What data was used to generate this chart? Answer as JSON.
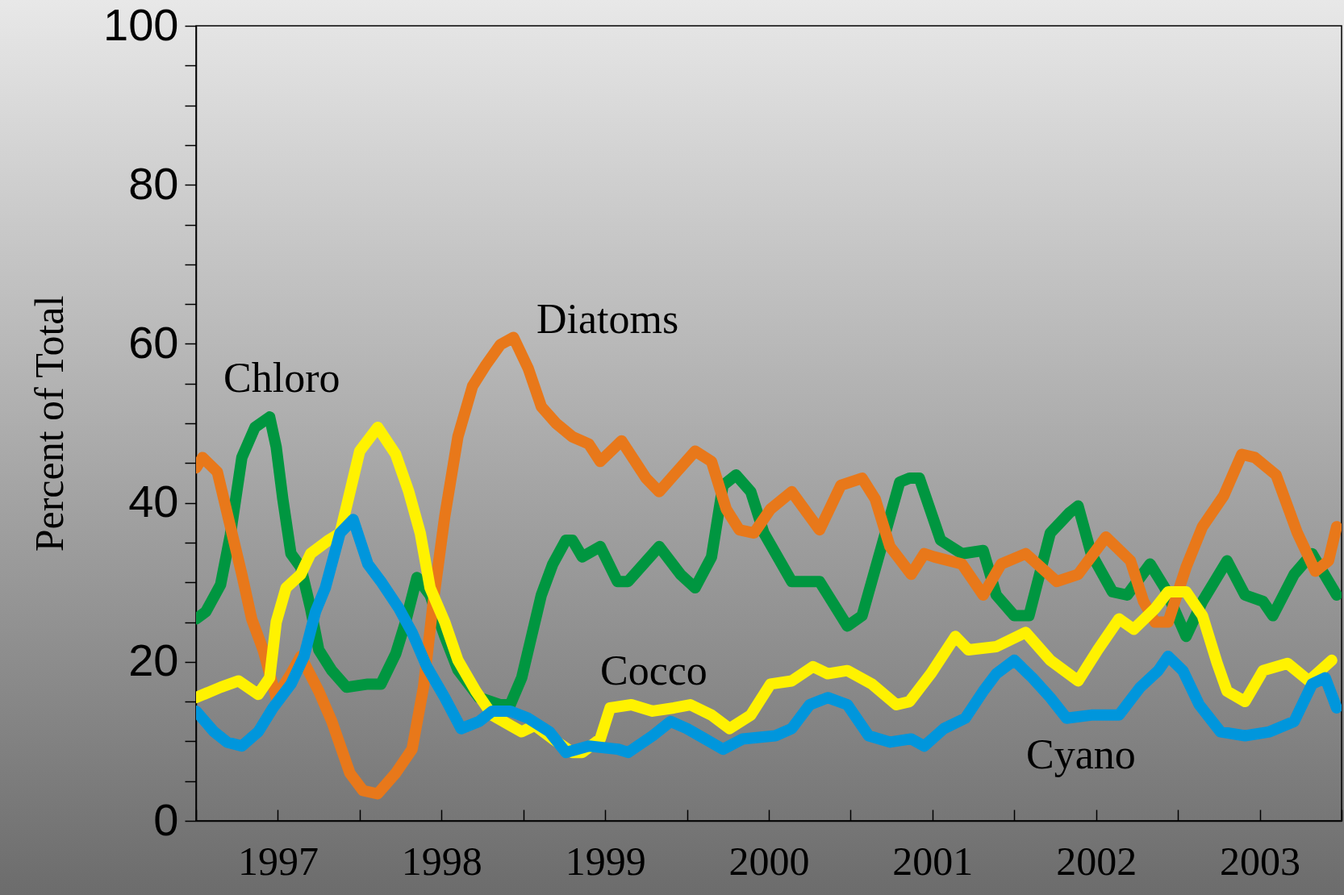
{
  "chart_data": {
    "type": "line",
    "ylabel": "Percent of Total",
    "xlim": [
      1997,
      2004
    ],
    "ylim": [
      0,
      100
    ],
    "xticks": [
      {
        "value": 1997,
        "label": null
      },
      {
        "value": 1997.5,
        "label": "1997"
      },
      {
        "value": 1998,
        "label": null
      },
      {
        "value": 1998.5,
        "label": "1998"
      },
      {
        "value": 1999,
        "label": null
      },
      {
        "value": 1999.5,
        "label": "1999"
      },
      {
        "value": 2000,
        "label": null
      },
      {
        "value": 2000.5,
        "label": "2000"
      },
      {
        "value": 2001,
        "label": null
      },
      {
        "value": 2001.5,
        "label": "2001"
      },
      {
        "value": 2002,
        "label": null
      },
      {
        "value": 2002.5,
        "label": "2002"
      },
      {
        "value": 2003,
        "label": null
      },
      {
        "value": 2003.5,
        "label": "2003"
      },
      {
        "value": 2004,
        "label": null
      }
    ],
    "yticks": [
      0,
      {
        "value": 5,
        "label": null
      },
      {
        "value": 10,
        "label": null
      },
      {
        "value": 15,
        "label": null
      },
      20,
      {
        "value": 25,
        "label": null
      },
      {
        "value": 30,
        "label": null
      },
      {
        "value": 35,
        "label": null
      },
      40,
      {
        "value": 45,
        "label": null
      },
      {
        "value": 50,
        "label": null
      },
      {
        "value": 55,
        "label": null
      },
      60,
      {
        "value": 65,
        "label": null
      },
      {
        "value": 70,
        "label": null
      },
      {
        "value": 75,
        "label": null
      },
      80,
      {
        "value": 85,
        "label": null
      },
      {
        "value": 90,
        "label": null
      },
      {
        "value": 95,
        "label": null
      },
      100
    ],
    "series": [
      {
        "name": "Chloro",
        "color": "#009640",
        "x": [
          1997.0,
          1997.06,
          1997.15,
          1997.21,
          1997.28,
          1997.36,
          1997.45,
          1997.49,
          1997.53,
          1997.58,
          1997.64,
          1997.7,
          1997.75,
          1997.83,
          1997.92,
          1998.05,
          1998.13,
          1998.22,
          1998.28,
          1998.35,
          1998.43,
          1998.52,
          1998.6,
          1998.73,
          1998.86,
          1998.92,
          1998.99,
          1999.05,
          1999.11,
          1999.18,
          1999.26,
          1999.3,
          1999.36,
          1999.47,
          1999.575,
          1999.64,
          1999.83,
          1999.96,
          2000.05,
          2000.15,
          2000.22,
          2000.3,
          2000.39,
          2000.47,
          2000.64,
          2000.81,
          2000.98,
          2001.07,
          2001.2,
          2001.3,
          2001.36,
          2001.42,
          2001.55,
          2001.68,
          2001.81,
          2001.89,
          2002.0,
          2002.09,
          2002.22,
          2002.34,
          2002.39,
          2002.47,
          2002.6,
          2002.69,
          2002.83,
          2002.92,
          2003.05,
          2003.15,
          2003.3,
          2003.41,
          2003.52,
          2003.58,
          2003.71,
          2003.82,
          2003.97
        ],
        "values": [
          25.4,
          26.3,
          29.7,
          36,
          45.7,
          49.5,
          50.8,
          47,
          40.5,
          33.6,
          31.9,
          26.7,
          21.5,
          18.9,
          16.8,
          17.2,
          17.2,
          21,
          25,
          30.6,
          28.4,
          23.2,
          19,
          15.5,
          14.6,
          14.6,
          18,
          23.2,
          28.4,
          32.3,
          35.3,
          35.3,
          33.2,
          34.5,
          30.1,
          30.1,
          34.5,
          31,
          29.3,
          33.2,
          42.2,
          43.5,
          41.4,
          36.2,
          30.1,
          30.1,
          24.5,
          25.8,
          35.3,
          42.6,
          43.1,
          43.1,
          35.3,
          33.6,
          34,
          28.4,
          25.8,
          25.8,
          36.2,
          38.8,
          39.6,
          33.6,
          28.8,
          28.4,
          32.3,
          29.3,
          23.2,
          27.6,
          32.7,
          28.4,
          27.6,
          25.8,
          31,
          33.6,
          28.4
        ]
      },
      {
        "name": "Diatoms",
        "color": "#e8781a",
        "x": [
          1997.0,
          1997.04,
          1997.13,
          1997.21,
          1997.28,
          1997.34,
          1997.41,
          1997.49,
          1997.58,
          1997.64,
          1997.75,
          1997.83,
          1997.94,
          1998.02,
          1998.11,
          1998.22,
          1998.32,
          1998.39,
          1998.45,
          1998.52,
          1998.6,
          1998.69,
          1998.77,
          1998.86,
          1998.94,
          1999.03,
          1999.11,
          1999.2,
          1999.3,
          1999.4,
          1999.47,
          1999.6,
          1999.75,
          1999.83,
          1999.92,
          2000.05,
          2000.15,
          2000.24,
          2000.32,
          2000.41,
          2000.51,
          2000.64,
          2000.81,
          2000.94,
          2001.07,
          2001.15,
          2001.24,
          2001.37,
          2001.45,
          2001.51,
          2001.68,
          2001.81,
          2001.92,
          2002.07,
          2002.26,
          2002.39,
          2002.56,
          2002.71,
          2002.79,
          2002.86,
          2002.94,
          2003.05,
          2003.15,
          2003.28,
          2003.39,
          2003.47,
          2003.6,
          2003.73,
          2003.84,
          2003.92,
          2003.97
        ],
        "values": [
          44.4,
          45.7,
          43.9,
          37,
          31,
          25.4,
          21.5,
          15.5,
          18.5,
          20.7,
          16.3,
          12.5,
          6,
          3.8,
          3.4,
          6,
          9,
          16.8,
          27.6,
          38.3,
          48.3,
          54.7,
          57.3,
          59.9,
          60.8,
          56.9,
          52.1,
          50,
          48.3,
          47.4,
          45.2,
          47.8,
          43.1,
          41.4,
          43.5,
          46.5,
          45.2,
          39.2,
          36.6,
          36.2,
          39.2,
          41.4,
          36.6,
          42.2,
          43.1,
          40.5,
          34.5,
          31,
          33.6,
          33.2,
          32.3,
          28.4,
          32.3,
          33.6,
          30.1,
          31,
          35.7,
          32.7,
          27.6,
          25,
          25,
          31.9,
          37,
          40.9,
          46.1,
          45.7,
          43.5,
          36.2,
          31.4,
          32.7,
          37
        ]
      },
      {
        "name": "Cocco",
        "color": "#fff200",
        "x": [
          1997.0,
          1997.15,
          1997.26,
          1997.38,
          1997.45,
          1997.49,
          1997.55,
          1997.64,
          1997.7,
          1997.81,
          1997.88,
          1997.92,
          1998.0,
          1998.11,
          1998.22,
          1998.3,
          1998.37,
          1998.43,
          1998.52,
          1998.6,
          1998.71,
          1998.81,
          1998.92,
          1998.99,
          1999.07,
          1999.18,
          1999.3,
          1999.36,
          1999.47,
          1999.53,
          1999.66,
          1999.79,
          1999.92,
          2000.02,
          2000.15,
          2000.26,
          2000.39,
          2000.51,
          2000.64,
          2000.77,
          2000.86,
          2000.98,
          2001.13,
          2001.28,
          2001.36,
          2001.49,
          2001.64,
          2001.72,
          2001.89,
          2002.07,
          2002.22,
          2002.39,
          2002.51,
          2002.64,
          2002.73,
          2002.86,
          2002.94,
          2003.05,
          2003.15,
          2003.24,
          2003.3,
          2003.41,
          2003.52,
          2003.67,
          2003.8,
          2003.94
        ],
        "values": [
          15.5,
          16.8,
          17.6,
          15.9,
          18,
          25,
          29.3,
          31,
          33.6,
          35.3,
          36.2,
          39.6,
          46.5,
          49.5,
          46.1,
          41.4,
          36.2,
          29.3,
          25,
          20.2,
          16.3,
          13.3,
          12,
          11.2,
          12,
          10.3,
          8.6,
          8.6,
          10.3,
          14.2,
          14.6,
          13.8,
          14.2,
          14.6,
          13.3,
          11.6,
          13.3,
          17.2,
          17.6,
          19.4,
          18.5,
          18.9,
          17.2,
          14.6,
          15,
          18.5,
          23.2,
          21.5,
          21.9,
          23.7,
          20.2,
          17.6,
          21.5,
          25.4,
          24.1,
          26.7,
          28.8,
          28.8,
          25.8,
          19.8,
          16.3,
          15,
          18.9,
          19.8,
          17.6,
          20.2
        ]
      },
      {
        "name": "Cyano",
        "color": "#0096dc",
        "x": [
          1997.0,
          1997.11,
          1997.19,
          1997.28,
          1997.38,
          1997.47,
          1997.58,
          1997.66,
          1997.73,
          1997.79,
          1997.88,
          1997.96,
          1998.05,
          1998.13,
          1998.24,
          1998.32,
          1998.41,
          1998.52,
          1998.62,
          1998.73,
          1998.81,
          1998.92,
          1999.03,
          1999.16,
          1999.26,
          1999.4,
          1999.58,
          1999.64,
          1999.79,
          1999.9,
          2000.0,
          2000.11,
          2000.22,
          2000.34,
          2000.54,
          2000.64,
          2000.75,
          2000.86,
          2000.98,
          2001.11,
          2001.24,
          2001.37,
          2001.45,
          2001.57,
          2001.7,
          2001.81,
          2001.89,
          2002.0,
          2002.11,
          2002.22,
          2002.32,
          2002.47,
          2002.64,
          2002.77,
          2002.88,
          2002.94,
          2003.03,
          2003.13,
          2003.26,
          2003.41,
          2003.56,
          2003.71,
          2003.82,
          2003.9,
          2003.97
        ],
        "values": [
          13.8,
          11.2,
          9.9,
          9.4,
          11.2,
          14.2,
          17.2,
          20.7,
          26.3,
          29.3,
          36.2,
          37.9,
          32.3,
          30.1,
          26.7,
          23.7,
          19.4,
          15.5,
          11.6,
          12.5,
          13.8,
          13.8,
          12.9,
          11.2,
          8.6,
          9.4,
          9,
          8.6,
          10.7,
          12.5,
          11.6,
          10.3,
          9,
          10.3,
          10.7,
          11.6,
          14.6,
          15.5,
          14.6,
          10.7,
          9.9,
          10.3,
          9.4,
          11.6,
          12.9,
          16.3,
          18.5,
          20.2,
          18,
          15.5,
          12.9,
          13.3,
          13.3,
          16.8,
          18.9,
          20.7,
          18.9,
          14.6,
          11.2,
          10.7,
          11.2,
          12.5,
          17.2,
          18,
          14.2
        ]
      }
    ]
  }
}
